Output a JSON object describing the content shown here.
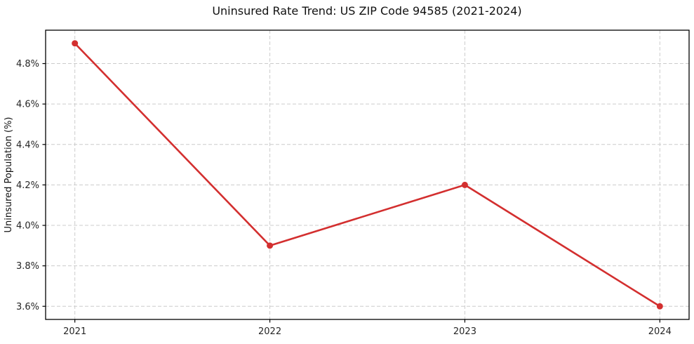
{
  "chart_data": {
    "type": "line",
    "title": "Uninsured Rate Trend: US ZIP Code 94585 (2021-2024)",
    "xlabel": "",
    "ylabel": "Uninsured Population (%)",
    "categories": [
      "2021",
      "2022",
      "2023",
      "2024"
    ],
    "x": [
      2021,
      2022,
      2023,
      2024
    ],
    "series": [
      {
        "name": "Uninsured rate",
        "values": [
          4.9,
          3.9,
          4.2,
          3.6
        ]
      }
    ],
    "yticks": [
      3.6,
      3.8,
      4.0,
      4.2,
      4.4,
      4.6,
      4.8
    ],
    "ytick_labels": [
      "3.6%",
      "3.8%",
      "4.0%",
      "4.2%",
      "4.4%",
      "4.6%",
      "4.8%"
    ],
    "xlim": [
      2020.85,
      2024.15
    ],
    "ylim": [
      3.535,
      4.965
    ],
    "grid": true,
    "grid_style": "dashed",
    "legend_position": "none",
    "line_color": "#d32f2f",
    "marker": "circle",
    "grid_color": "#cccccc",
    "frame_color": "#000000",
    "background_color": "#ffffff"
  }
}
